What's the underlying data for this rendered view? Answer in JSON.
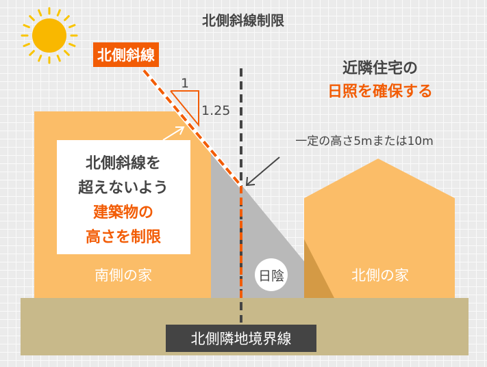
{
  "title": "北側斜線制限",
  "slope_label": "北側斜線",
  "ratio": {
    "horizontal": "1",
    "vertical": "1.25"
  },
  "callout_lines": [
    "北側斜線を",
    "超えないよう",
    "建築物の",
    "高さを制限"
  ],
  "south_house": "南側の家",
  "north_house": "北側の家",
  "shade_label": "日陰",
  "boundary_label": "北側隣地境界線",
  "neighbor_text": [
    "近隣住宅の",
    "日照を確保する"
  ],
  "height_note": "一定の高さ5mまたは10m",
  "colors": {
    "accent": "#f25c05",
    "house": "#fbbd68",
    "ground": "#c8b98a",
    "dark": "#444444",
    "sun": "#f9b800"
  }
}
